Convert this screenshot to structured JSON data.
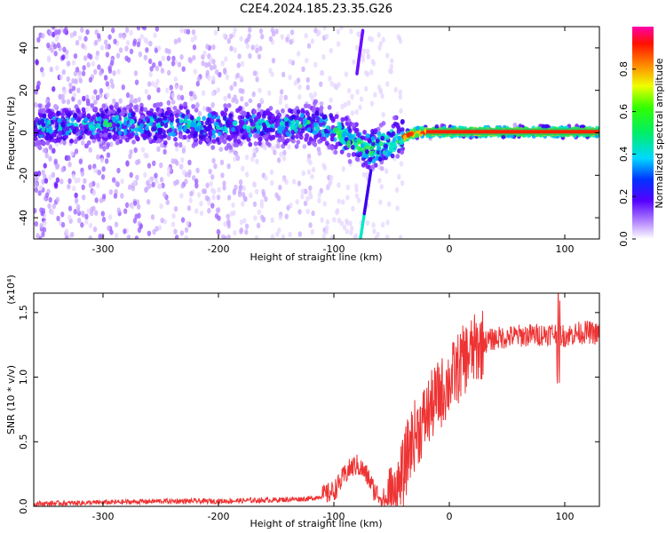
{
  "page_title": "C2E4.2024.185.23.35.G26",
  "chart_data": [
    {
      "type": "heatmap",
      "xlabel": "Height of straight line (km)",
      "ylabel": "Frequency (Hz)",
      "xlim": [
        -360,
        130
      ],
      "ylim": [
        -50,
        50
      ],
      "xticks": [
        -300,
        -200,
        -100,
        0,
        100
      ],
      "xtick_labels": [
        "-300",
        "-200",
        "-100",
        "0",
        "100"
      ],
      "yticks": [
        -40,
        -20,
        0,
        20,
        40
      ],
      "ytick_labels": [
        "-40",
        "-20",
        "0",
        "20",
        "40"
      ],
      "colorbar": {
        "label": "Normalized spectral amplitude",
        "range": [
          0,
          1
        ],
        "ticks": [
          0.0,
          0.2,
          0.4,
          0.6,
          0.8
        ],
        "tick_labels": [
          "0.0",
          "0.2",
          "0.4",
          "0.6",
          "0.8"
        ]
      },
      "ridge": {
        "x": [
          -360,
          -300,
          -250,
          -200,
          -150,
          -120,
          -100,
          -90,
          -80,
          -70,
          -60,
          -50,
          -40,
          -30,
          -20,
          0,
          50,
          90,
          130
        ],
        "y": [
          3,
          4,
          4,
          3,
          3,
          4,
          2,
          -2,
          -5,
          -7,
          -6,
          -4,
          -2,
          0,
          0.5,
          0.5,
          0.5,
          0.5,
          0.5
        ]
      },
      "streak_lines": [
        {
          "x": [
            -77,
            -68
          ],
          "y": [
            -50,
            -18
          ]
        },
        {
          "x": [
            -80,
            -75
          ],
          "y": [
            28,
            48
          ]
        }
      ],
      "grid": false
    },
    {
      "type": "line",
      "xlabel": "Height of straight line (km)",
      "ylabel": "SNR (10 * v/v)",
      "y_multiplier": "(x10⁴)",
      "xlim": [
        -360,
        130
      ],
      "ylim": [
        0,
        1.65
      ],
      "xticks": [
        -300,
        -200,
        -100,
        0,
        100
      ],
      "xtick_labels": [
        "-300",
        "-200",
        "-100",
        "0",
        "100"
      ],
      "yticks": [
        0.0,
        0.5,
        1.0,
        1.5
      ],
      "ytick_labels": [
        "0.0",
        "0.5",
        "1.0",
        "1.5"
      ],
      "series_color": "#ee3333",
      "x": [
        -360,
        -300,
        -250,
        -200,
        -150,
        -120,
        -110,
        -100,
        -95,
        -90,
        -85,
        -80,
        -75,
        -70,
        -65,
        -60,
        -55,
        -50,
        -45,
        -40,
        -35,
        -30,
        -25,
        -20,
        -15,
        -10,
        -5,
        0,
        5,
        10,
        15,
        20,
        25,
        30,
        40,
        60,
        80,
        90,
        95,
        100,
        110,
        120,
        130
      ],
      "y": [
        0.02,
        0.03,
        0.04,
        0.04,
        0.05,
        0.06,
        0.08,
        0.12,
        0.18,
        0.25,
        0.3,
        0.32,
        0.28,
        0.22,
        0.12,
        0.08,
        0.05,
        0.06,
        0.12,
        0.25,
        0.45,
        0.55,
        0.62,
        0.7,
        0.78,
        0.85,
        0.9,
        0.97,
        1.03,
        1.1,
        1.16,
        1.2,
        1.23,
        1.27,
        1.3,
        1.32,
        1.33,
        1.34,
        1.33,
        1.32,
        1.34,
        1.35,
        1.33
      ],
      "annotations": [
        {
          "x": 95,
          "y": 0.93,
          "label": ""
        }
      ],
      "grid": false
    }
  ]
}
